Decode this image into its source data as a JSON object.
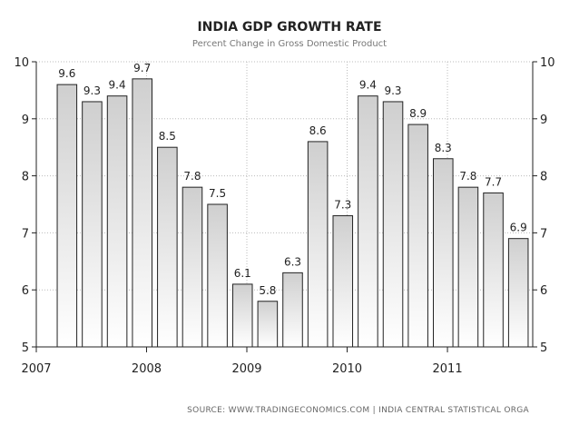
{
  "chart_data": {
    "type": "bar",
    "title": "INDIA GDP GROWTH RATE",
    "subtitle": "Percent Change in Gross Domestic Product",
    "source": "SOURCE: WWW.TRADINGECONOMICS.COM | INDIA CENTRAL STATISTICAL ORGA",
    "ylim": [
      5,
      10
    ],
    "yticks": [
      5,
      6,
      7,
      8,
      9,
      10
    ],
    "xtick_labels": [
      "2007",
      "2008",
      "2009",
      "2010",
      "2011"
    ],
    "grid": true,
    "bar_color": "#dcdcdc",
    "values": [
      9.6,
      9.3,
      9.4,
      9.7,
      8.5,
      7.8,
      7.5,
      6.1,
      5.8,
      6.3,
      8.6,
      7.3,
      9.4,
      9.3,
      8.9,
      8.3,
      7.8,
      7.7,
      6.9
    ],
    "labels": [
      "9.6",
      "9.3",
      "9.4",
      "9.7",
      "8.5",
      "7.8",
      "7.5",
      "6.1",
      "5.8",
      "6.3",
      "8.6",
      "7.3",
      "9.4",
      "9.3",
      "8.9",
      "8.3",
      "7.8",
      "7.7",
      "6.9"
    ]
  }
}
